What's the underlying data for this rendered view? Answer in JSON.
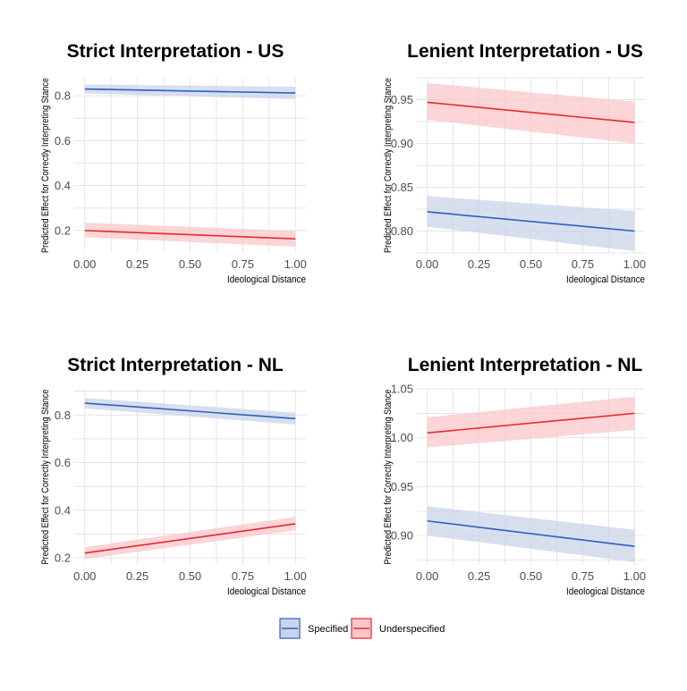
{
  "colors": {
    "specified": "#2c5fbf",
    "specified_band": "#c9d4ea",
    "underspecified": "#e8262f",
    "underspecified_band": "#f9c7c9",
    "grid": "#dcdcdc"
  },
  "legend": {
    "position": "bottom",
    "items": [
      {
        "label": "Specified",
        "series": "specified"
      },
      {
        "label": "Underspecified",
        "series": "underspecified"
      }
    ]
  },
  "chart_data": [
    {
      "type": "line",
      "title": "Strict Interpretation - US",
      "xlabel": "Ideological Distance",
      "ylabel": "Predicted Effect for Correctly Interpreting Stance",
      "xlim": [
        -0.05,
        1.05
      ],
      "ylim": [
        0.1,
        0.88
      ],
      "x_ticks": [
        0,
        0.25,
        0.5,
        0.75,
        1
      ],
      "x_tick_labels": [
        "0.00",
        "0.25",
        "0.50",
        "0.75",
        "1.00"
      ],
      "y_ticks": [
        0.2,
        0.4,
        0.6,
        0.8
      ],
      "y_tick_labels": [
        "0.2",
        "0.4",
        "0.6",
        "0.8"
      ],
      "grid": true,
      "series": [
        {
          "name": "Specified",
          "key": "specified",
          "x": [
            0,
            1
          ],
          "y": [
            0.83,
            0.812
          ],
          "lower": [
            0.81,
            0.785
          ],
          "upper": [
            0.85,
            0.84
          ]
        },
        {
          "name": "Underspecified",
          "key": "underspecified",
          "x": [
            0,
            1
          ],
          "y": [
            0.2,
            0.163
          ],
          "lower": [
            0.17,
            0.128
          ],
          "upper": [
            0.235,
            0.198
          ]
        }
      ]
    },
    {
      "type": "line",
      "title": "Lenient Interpretation - US",
      "xlabel": "Ideological Distance",
      "ylabel": "Predicted Effect for Correctly Interpreting Stance",
      "xlim": [
        -0.05,
        1.05
      ],
      "ylim": [
        0.775,
        0.975
      ],
      "x_ticks": [
        0,
        0.25,
        0.5,
        0.75,
        1
      ],
      "x_tick_labels": [
        "0.00",
        "0.25",
        "0.50",
        "0.75",
        "1.00"
      ],
      "y_ticks": [
        0.8,
        0.85,
        0.9,
        0.95
      ],
      "y_tick_labels": [
        "0.80",
        "0.85",
        "0.90",
        "0.95"
      ],
      "grid": true,
      "series": [
        {
          "name": "Specified",
          "key": "specified",
          "x": [
            0,
            1
          ],
          "y": [
            0.822,
            0.8
          ],
          "lower": [
            0.805,
            0.777
          ],
          "upper": [
            0.84,
            0.823
          ]
        },
        {
          "name": "Underspecified",
          "key": "underspecified",
          "x": [
            0,
            1
          ],
          "y": [
            0.947,
            0.924
          ],
          "lower": [
            0.927,
            0.9
          ],
          "upper": [
            0.969,
            0.948
          ]
        }
      ]
    },
    {
      "type": "line",
      "title": "Strict Interpretation - NL",
      "xlabel": "Ideological Distance",
      "ylabel": "Predicted Effect for Correctly Interpreting Stance",
      "xlim": [
        -0.05,
        1.05
      ],
      "ylim": [
        0.17,
        0.91
      ],
      "x_ticks": [
        0,
        0.25,
        0.5,
        0.75,
        1
      ],
      "x_tick_labels": [
        "0.00",
        "0.25",
        "0.50",
        "0.75",
        "1.00"
      ],
      "y_ticks": [
        0.2,
        0.4,
        0.6,
        0.8
      ],
      "y_tick_labels": [
        "0.2",
        "0.4",
        "0.6",
        "0.8"
      ],
      "grid": true,
      "series": [
        {
          "name": "Specified",
          "key": "specified",
          "x": [
            0,
            1
          ],
          "y": [
            0.85,
            0.785
          ],
          "lower": [
            0.828,
            0.76
          ],
          "upper": [
            0.872,
            0.81
          ]
        },
        {
          "name": "Underspecified",
          "key": "underspecified",
          "x": [
            0,
            1
          ],
          "y": [
            0.22,
            0.343
          ],
          "lower": [
            0.195,
            0.315
          ],
          "upper": [
            0.245,
            0.372
          ]
        }
      ]
    },
    {
      "type": "line",
      "title": "Lenient Interpretation - NL",
      "xlabel": "Ideological Distance",
      "ylabel": "Predicted Effect for Correctly Interpreting Stance",
      "xlim": [
        -0.05,
        1.05
      ],
      "ylim": [
        0.87,
        1.05
      ],
      "x_ticks": [
        0,
        0.25,
        0.5,
        0.75,
        1
      ],
      "x_tick_labels": [
        "0.00",
        "0.25",
        "0.50",
        "0.75",
        "1.00"
      ],
      "y_ticks": [
        0.9,
        0.95,
        1.0,
        1.05
      ],
      "y_tick_labels": [
        "0.90",
        "0.95",
        "1.00",
        "1.05"
      ],
      "grid": true,
      "series": [
        {
          "name": "Specified",
          "key": "specified",
          "x": [
            0,
            1
          ],
          "y": [
            0.915,
            0.889
          ],
          "lower": [
            0.9,
            0.873
          ],
          "upper": [
            0.93,
            0.906
          ]
        },
        {
          "name": "Underspecified",
          "key": "underspecified",
          "x": [
            0,
            1
          ],
          "y": [
            1.005,
            1.025
          ],
          "lower": [
            0.99,
            1.008
          ],
          "upper": [
            1.021,
            1.042
          ]
        }
      ]
    }
  ]
}
